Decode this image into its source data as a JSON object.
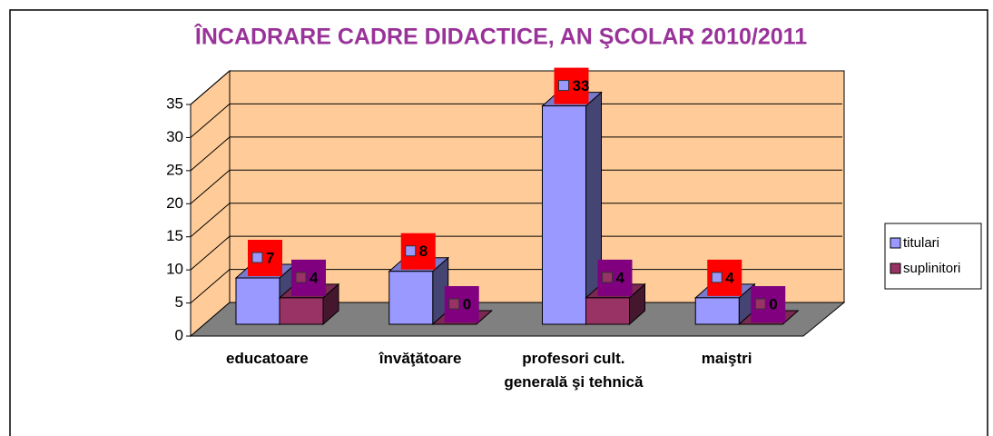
{
  "chart_data": {
    "type": "bar3d",
    "title": "ÎNCADRARE CADRE DIDACTICE, AN ŞCOLAR 2010/2011",
    "categories": [
      "educatoare",
      "învăţătoare",
      "profesori cult. generală şi tehnică",
      "maiştri"
    ],
    "series": [
      {
        "name": "titulari",
        "color": "#9999ff",
        "label_color": "#ff0000",
        "values": [
          7,
          8,
          33,
          4
        ]
      },
      {
        "name": "suplinitori",
        "color": "#993366",
        "label_color": "#800080",
        "values": [
          4,
          0,
          4,
          0
        ]
      }
    ],
    "ylim": [
      0,
      35
    ],
    "yticks": [
      0,
      5,
      10,
      15,
      20,
      25,
      30,
      35
    ],
    "grid": true,
    "legend": "right"
  }
}
